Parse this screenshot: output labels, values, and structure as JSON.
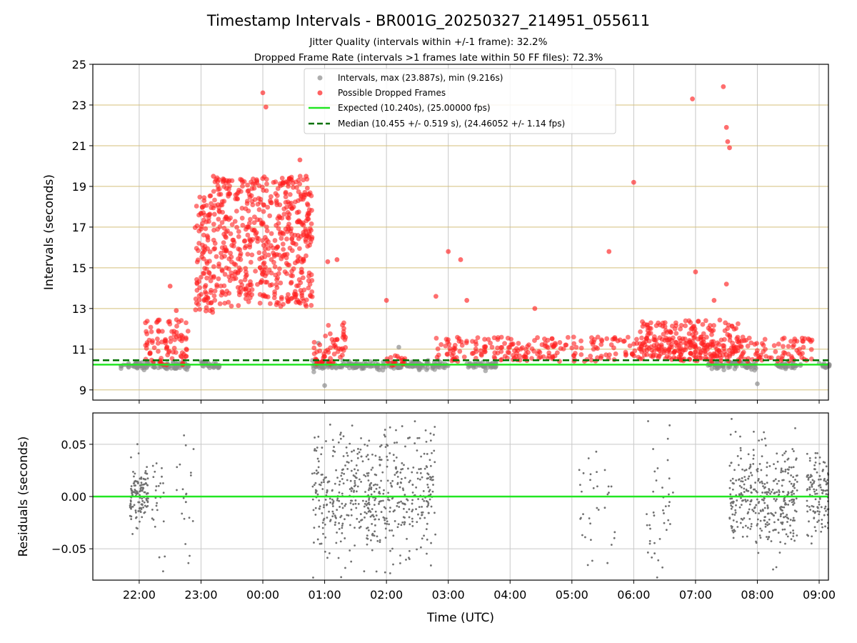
{
  "chart_data": [
    {
      "type": "scatter",
      "title": "Timestamp Intervals - BR001G_20250327_214951_055611",
      "subtitle_1": "Jitter Quality (intervals within +/-1 frame): 32.2%",
      "subtitle_2": "Dropped Frame Rate (intervals >1 frames late within 50 FF files): 72.3%",
      "xlabel": "",
      "ylabel": "Intervals (seconds)",
      "ylim": [
        8.5,
        25
      ],
      "y_ticks": [
        "9",
        "11",
        "13",
        "15",
        "17",
        "19",
        "21",
        "23",
        "25"
      ],
      "grid": true,
      "legend_position": "top-center",
      "legend": {
        "intervals": "Intervals, max (23.887s), min (9.216s)",
        "dropped": "Possible Dropped Frames",
        "expected": "Expected (10.240s), (25.00000 fps)",
        "median": "Median (10.455 +/- 0.519 s), (24.46052 +/- 1.14 fps)"
      },
      "colors": {
        "intervals": "#8c8c8c",
        "dropped": "#ff2020",
        "expected": "#22e622",
        "median": "#007000",
        "hgrid": "#d4bf7a",
        "vgrid": "#c8c8c8"
      },
      "series": [
        {
          "name": "Expected (10.240s), (25.00000 fps)",
          "kind": "hline",
          "y": 10.24
        },
        {
          "name": "Median (10.455 +/- 0.519 s), (24.46052 +/- 1.14 fps)",
          "kind": "hline-dashed",
          "y": 10.455
        },
        {
          "name": "Intervals, max (23.887s), min (9.216s)",
          "kind": "band",
          "ranges_hours": [
            [
              21.7,
              22.8
            ],
            [
              23.0,
              23.3
            ],
            [
              24.8,
              27.0
            ],
            [
              27.3,
              27.8
            ],
            [
              31.2,
              32.0
            ],
            [
              32.3,
              32.7
            ],
            [
              33.0,
              33.2
            ],
            [
              34.9,
              35.1
            ],
            [
              35.4,
              35.8
            ]
          ],
          "center": 10.2,
          "spread": 0.18,
          "extra_points": [
            [
              24.9,
              11.3
            ],
            [
              25.0,
              9.216
            ],
            [
              26.2,
              11.1
            ],
            [
              32.0,
              9.3
            ],
            [
              34.2,
              10.7
            ]
          ]
        },
        {
          "name": "Possible Dropped Frames",
          "kind": "clusters",
          "clusters": [
            {
              "x": [
                22.1,
                22.8
              ],
              "y_low": 10.2,
              "y_high": 12.5
            },
            {
              "x": [
                22.9,
                23.2
              ],
              "y_low": 12.8,
              "y_high": 18.6
            },
            {
              "x": [
                23.2,
                24.8
              ],
              "y_low": 13.1,
              "y_high": 19.5
            },
            {
              "x": [
                24.8,
                25.0
              ],
              "y_low": 10.2,
              "y_high": 11.4
            },
            {
              "x": [
                25.0,
                25.35
              ],
              "y_low": 10.2,
              "y_high": 12.3
            },
            {
              "x": [
                26.0,
                26.3
              ],
              "y_low": 10.2,
              "y_high": 10.7
            },
            {
              "x": [
                26.8,
                32.9
              ],
              "y_low": 10.4,
              "y_high": 11.6
            },
            {
              "x": [
                30.1,
                31.0
              ],
              "y_low": 10.5,
              "y_high": 12.4
            },
            {
              "x": [
                30.9,
                31.7
              ],
              "y_low": 10.5,
              "y_high": 12.5
            },
            {
              "x": [
                34.7,
                34.95
              ],
              "y_low": 10.2,
              "y_high": 11.5
            }
          ],
          "outliers": [
            [
              22.5,
              14.1
            ],
            [
              22.6,
              12.9
            ],
            [
              23.0,
              16.9
            ],
            [
              23.05,
              18.3
            ],
            [
              23.2,
              19.5
            ],
            [
              24.0,
              23.6
            ],
            [
              24.05,
              22.9
            ],
            [
              24.6,
              20.3
            ],
            [
              24.7,
              19.5
            ],
            [
              25.05,
              15.3
            ],
            [
              25.2,
              15.4
            ],
            [
              26.0,
              13.4
            ],
            [
              26.8,
              13.6
            ],
            [
              27.0,
              15.8
            ],
            [
              27.2,
              15.4
            ],
            [
              27.3,
              13.4
            ],
            [
              28.4,
              13.0
            ],
            [
              29.6,
              15.8
            ],
            [
              30.0,
              19.2
            ],
            [
              31.0,
              14.8
            ],
            [
              30.95,
              23.3
            ],
            [
              31.45,
              23.9
            ],
            [
              31.5,
              21.9
            ],
            [
              31.52,
              21.2
            ],
            [
              31.55,
              20.9
            ],
            [
              31.5,
              14.2
            ],
            [
              31.3,
              13.4
            ],
            [
              34.6,
              14.1
            ]
          ]
        }
      ]
    },
    {
      "type": "scatter",
      "xlabel": "Time (UTC)",
      "ylabel": "Residuals (seconds)",
      "ylim": [
        -0.08,
        0.08
      ],
      "y_ticks": [
        "0.05",
        "0.00",
        "−0.05"
      ],
      "x_ticks": [
        "22:00",
        "23:00",
        "00:00",
        "01:00",
        "02:00",
        "03:00",
        "04:00",
        "05:00",
        "06:00",
        "07:00",
        "08:00",
        "09:00"
      ],
      "x_tick_hours": [
        22,
        23,
        24,
        25,
        26,
        27,
        28,
        29,
        30,
        31,
        32,
        33
      ],
      "xlim_hours": [
        21.25,
        33.15
      ],
      "grid": true,
      "series": [
        {
          "name": "",
          "kind": "hline",
          "y": 0.0
        },
        {
          "name": "",
          "kind": "residual-clusters",
          "clusters": [
            {
              "x": [
                21.85,
                22.15
              ],
              "sigma": 0.015,
              "n": 130
            },
            {
              "x": [
                22.2,
                22.45
              ],
              "sigma": 0.03,
              "n": 25
            },
            {
              "x": [
                22.6,
                22.9
              ],
              "sigma": 0.04,
              "n": 25
            },
            {
              "x": [
                24.8,
                26.8
              ],
              "sigma": 0.03,
              "n": 560
            },
            {
              "x": [
                29.1,
                29.7
              ],
              "sigma": 0.04,
              "n": 35
            },
            {
              "x": [
                30.2,
                30.65
              ],
              "sigma": 0.04,
              "n": 40
            },
            {
              "x": [
                31.55,
                32.65
              ],
              "sigma": 0.025,
              "n": 370
            },
            {
              "x": [
                32.8,
                33.15
              ],
              "sigma": 0.02,
              "n": 120
            }
          ]
        }
      ]
    }
  ]
}
